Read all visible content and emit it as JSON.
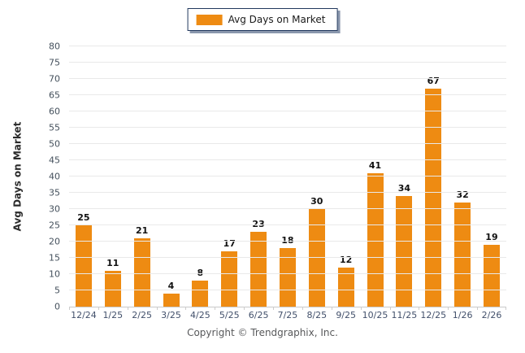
{
  "legend": {
    "label": "Avg Days on Market"
  },
  "footer": {
    "copyright": "Copyright © Trendgraphix, Inc."
  },
  "colors": {
    "bar": "#EE8B12",
    "legend_border": "#22395E",
    "grid": "#E9E9E9",
    "axis": "#C9C9C9",
    "tick_label": "#44505C",
    "value_label": "#111111"
  },
  "chart_data": {
    "type": "bar",
    "title": "",
    "categories": [
      "12/24",
      "1/25",
      "2/25",
      "3/25",
      "4/25",
      "5/25",
      "6/25",
      "7/25",
      "8/25",
      "9/25",
      "10/25",
      "11/25",
      "12/25",
      "1/26",
      "2/26"
    ],
    "values": [
      25,
      11,
      21,
      4,
      8,
      17,
      23,
      18,
      30,
      12,
      41,
      34,
      67,
      32,
      19
    ],
    "series_name": "Avg Days on Market",
    "xlabel": "",
    "ylabel": "Avg Days on Market",
    "ylim": [
      0,
      80
    ],
    "ytick_step": 5,
    "grid": true,
    "legend_position": "top",
    "data_labels": true
  }
}
